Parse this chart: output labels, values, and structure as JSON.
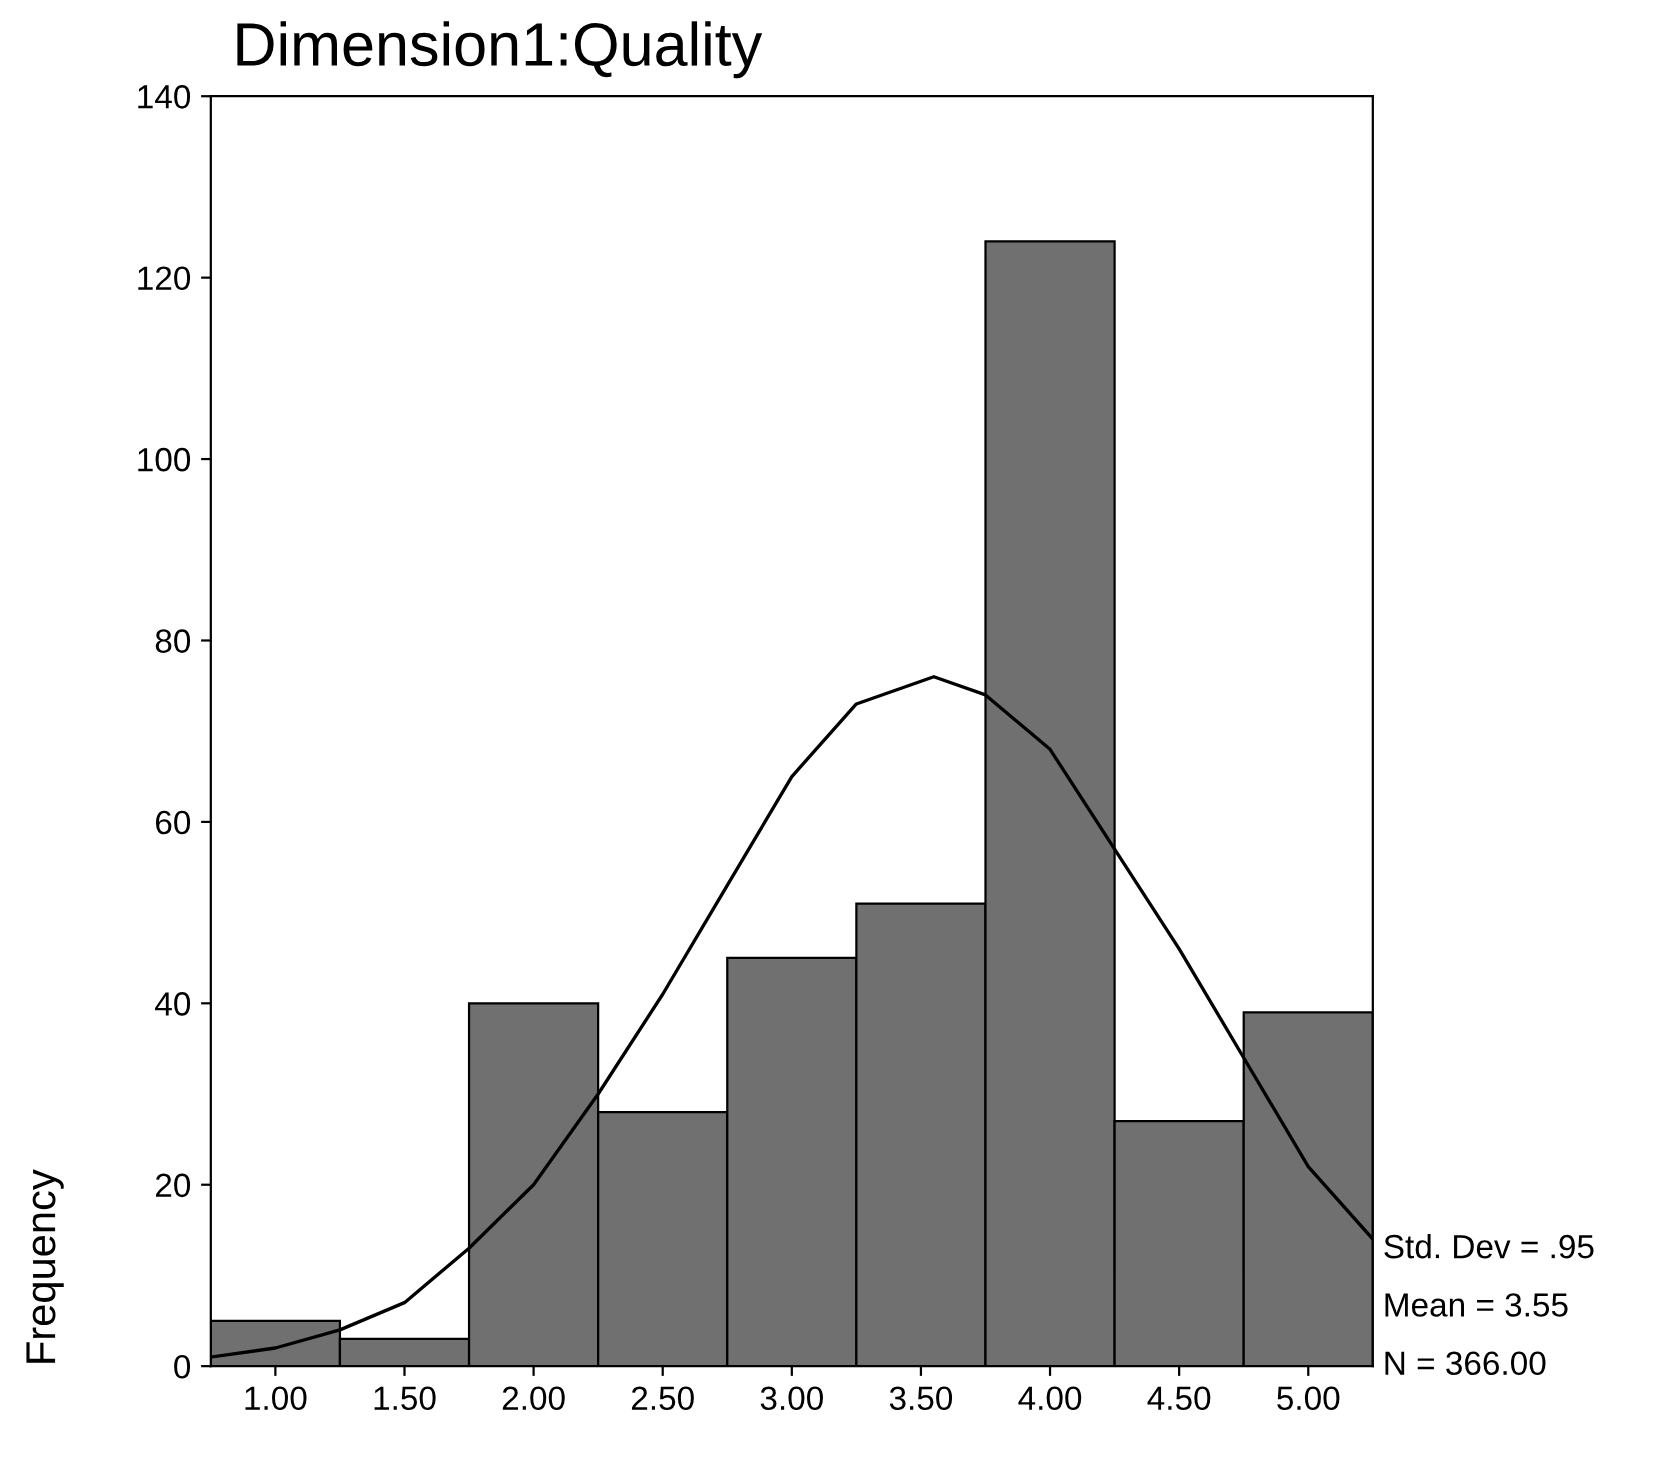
{
  "chart_data": {
    "type": "histogram",
    "title": "Dimension1:Quality",
    "ylabel": "Frequency",
    "bins": [
      0.75,
      1.25,
      1.75,
      2.25,
      2.75,
      3.25,
      3.75,
      4.25,
      4.75,
      5.25
    ],
    "values": [
      5,
      3,
      40,
      28,
      45,
      51,
      124,
      27,
      39
    ],
    "color": "#707070",
    "series": [
      {
        "type": "line",
        "color": "#000000",
        "x": [
          0.75,
          1.0,
          1.25,
          1.5,
          1.75,
          2.0,
          2.25,
          2.5,
          2.75,
          3.0,
          3.25,
          3.55,
          3.75,
          4.0,
          4.25,
          4.5,
          4.75,
          5.0,
          5.25
        ],
        "values": [
          1,
          2,
          4,
          7,
          13,
          20,
          30,
          41,
          53,
          65,
          73,
          76,
          74,
          68,
          57,
          46,
          34,
          22,
          14
        ]
      }
    ],
    "xlim": [
      0.75,
      5.25
    ],
    "xticks": [
      {
        "value": 1,
        "label": "1.00"
      },
      {
        "value": 1.5,
        "label": "1.50"
      },
      {
        "value": 2,
        "label": "2.00"
      },
      {
        "value": 2.5,
        "label": "2.50"
      },
      {
        "value": 3,
        "label": "3.00"
      },
      {
        "value": 3.5,
        "label": "3.50"
      },
      {
        "value": 4,
        "label": "4.00"
      },
      {
        "value": 4.5,
        "label": "4.50"
      },
      {
        "value": 5,
        "label": "5.00"
      }
    ],
    "ylim": [
      0,
      140
    ],
    "yticks": [
      0,
      20,
      40,
      60,
      80,
      100,
      120,
      140
    ],
    "grid": false,
    "legend": false,
    "annotations": [
      "Std. Dev = .95",
      "Mean = 3.55",
      "N = 366.00"
    ]
  }
}
